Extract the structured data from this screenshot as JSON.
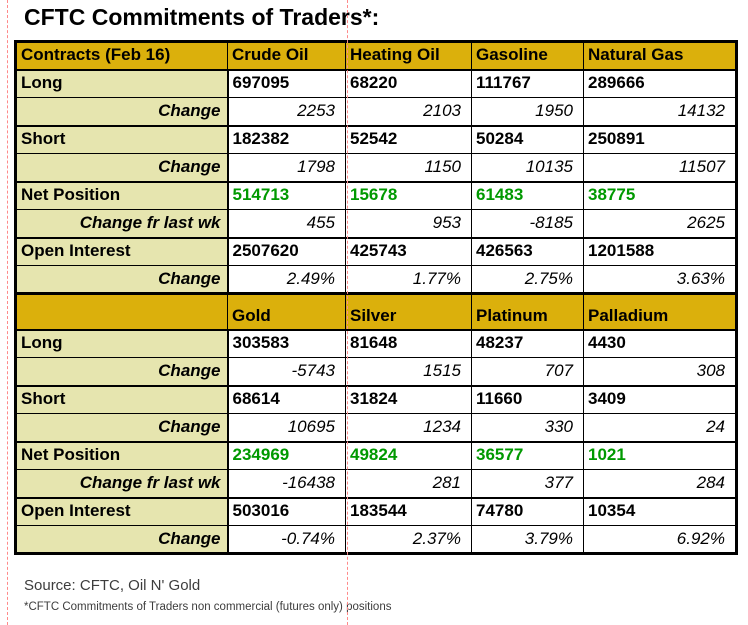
{
  "title": "CFTC Commitments of Traders*:",
  "source_note": "Source: CFTC, Oil N' Gold",
  "footnote": "*CFTC Commitments of Traders non commercial (futures only) positions",
  "colors": {
    "header_gold": "#DBB00C",
    "label_column_bg": "#E6E5AF",
    "net_position_green": "#009900",
    "table_border": "#000000",
    "page_break_line": "#FF8A8A"
  },
  "chart_data": {
    "type": "table",
    "title": "CFTC Commitments of Traders*:",
    "sections": [
      {
        "header": [
          "Contracts (Feb 16)",
          "Crude Oil",
          "Heating Oil",
          "Gasoline",
          "Natural Gas"
        ],
        "rows": [
          {
            "label": "Long",
            "values": [
              "697095",
              "68220",
              "111767",
              "289666"
            ]
          },
          {
            "label": "Change",
            "values": [
              "2253",
              "2103",
              "1950",
              "14132"
            ]
          },
          {
            "label": "Short",
            "values": [
              "182382",
              "52542",
              "50284",
              "250891"
            ]
          },
          {
            "label": "Change",
            "values": [
              "1798",
              "1150",
              "10135",
              "11507"
            ]
          },
          {
            "label": "Net Position",
            "values": [
              "514713",
              "15678",
              "61483",
              "38775"
            ]
          },
          {
            "label": "Change fr last wk",
            "values": [
              "455",
              "953",
              "-8185",
              "2625"
            ]
          },
          {
            "label": "Open Interest",
            "values": [
              "2507620",
              "425743",
              "426563",
              "1201588"
            ]
          },
          {
            "label": "Change",
            "values": [
              "2.49%",
              "1.77%",
              "2.75%",
              "3.63%"
            ]
          }
        ]
      },
      {
        "header": [
          "",
          "Gold",
          "Silver",
          "Platinum",
          "Palladium"
        ],
        "rows": [
          {
            "label": "Long",
            "values": [
              "303583",
              "81648",
              "48237",
              "4430"
            ]
          },
          {
            "label": "Change",
            "values": [
              "-5743",
              "1515",
              "707",
              "308"
            ]
          },
          {
            "label": "Short",
            "values": [
              "68614",
              "31824",
              "11660",
              "3409"
            ]
          },
          {
            "label": "Change",
            "values": [
              "10695",
              "1234",
              "330",
              "24"
            ]
          },
          {
            "label": "Net Position",
            "values": [
              "234969",
              "49824",
              "36577",
              "1021"
            ]
          },
          {
            "label": "Change fr last wk",
            "values": [
              "-16438",
              "281",
              "377",
              "284"
            ]
          },
          {
            "label": "Open Interest",
            "values": [
              "503016",
              "183544",
              "74780",
              "10354"
            ]
          },
          {
            "label": "Change",
            "values": [
              "-0.74%",
              "2.37%",
              "3.79%",
              "6.92%"
            ]
          }
        ]
      }
    ]
  }
}
